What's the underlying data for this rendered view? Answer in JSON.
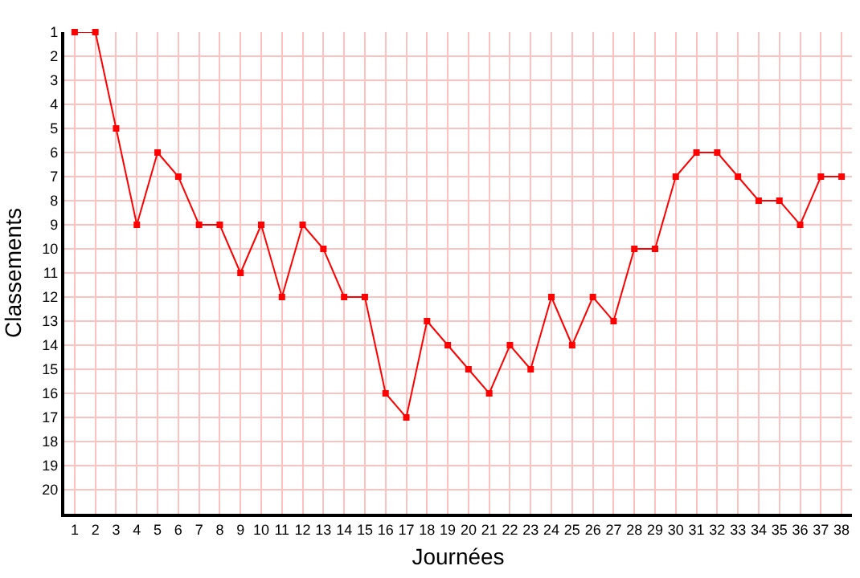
{
  "chart_data": {
    "type": "line",
    "xlabel": "Journées",
    "ylabel": "Classements",
    "x": [
      1,
      2,
      3,
      4,
      5,
      6,
      7,
      8,
      9,
      10,
      11,
      12,
      13,
      14,
      15,
      16,
      17,
      18,
      19,
      20,
      21,
      22,
      23,
      24,
      25,
      26,
      27,
      28,
      29,
      30,
      31,
      32,
      33,
      34,
      35,
      36,
      37,
      38
    ],
    "series": [
      {
        "color": "#ff0000",
        "values": [
          1,
          1,
          5,
          9,
          6,
          7,
          9,
          9,
          11,
          9,
          12,
          9,
          10,
          12,
          12,
          16,
          17,
          13,
          14,
          15,
          16,
          14,
          15,
          12,
          14,
          12,
          13,
          10,
          10,
          7,
          6,
          6,
          7,
          8,
          8,
          9,
          7,
          7
        ]
      }
    ],
    "xlim": [
      0.5,
      38.5
    ],
    "xticks": [
      1,
      2,
      3,
      4,
      5,
      6,
      7,
      8,
      9,
      10,
      11,
      12,
      13,
      14,
      15,
      16,
      17,
      18,
      19,
      20,
      21,
      22,
      23,
      24,
      25,
      26,
      27,
      28,
      29,
      30,
      31,
      32,
      33,
      34,
      35,
      36,
      37,
      38
    ],
    "ylim": [
      21,
      1
    ],
    "yticks": [
      1,
      2,
      3,
      4,
      5,
      6,
      7,
      8,
      9,
      10,
      11,
      12,
      13,
      14,
      15,
      16,
      17,
      18,
      19,
      20
    ],
    "grid": true,
    "legend": false,
    "marker": "square",
    "line_style": "solid"
  }
}
